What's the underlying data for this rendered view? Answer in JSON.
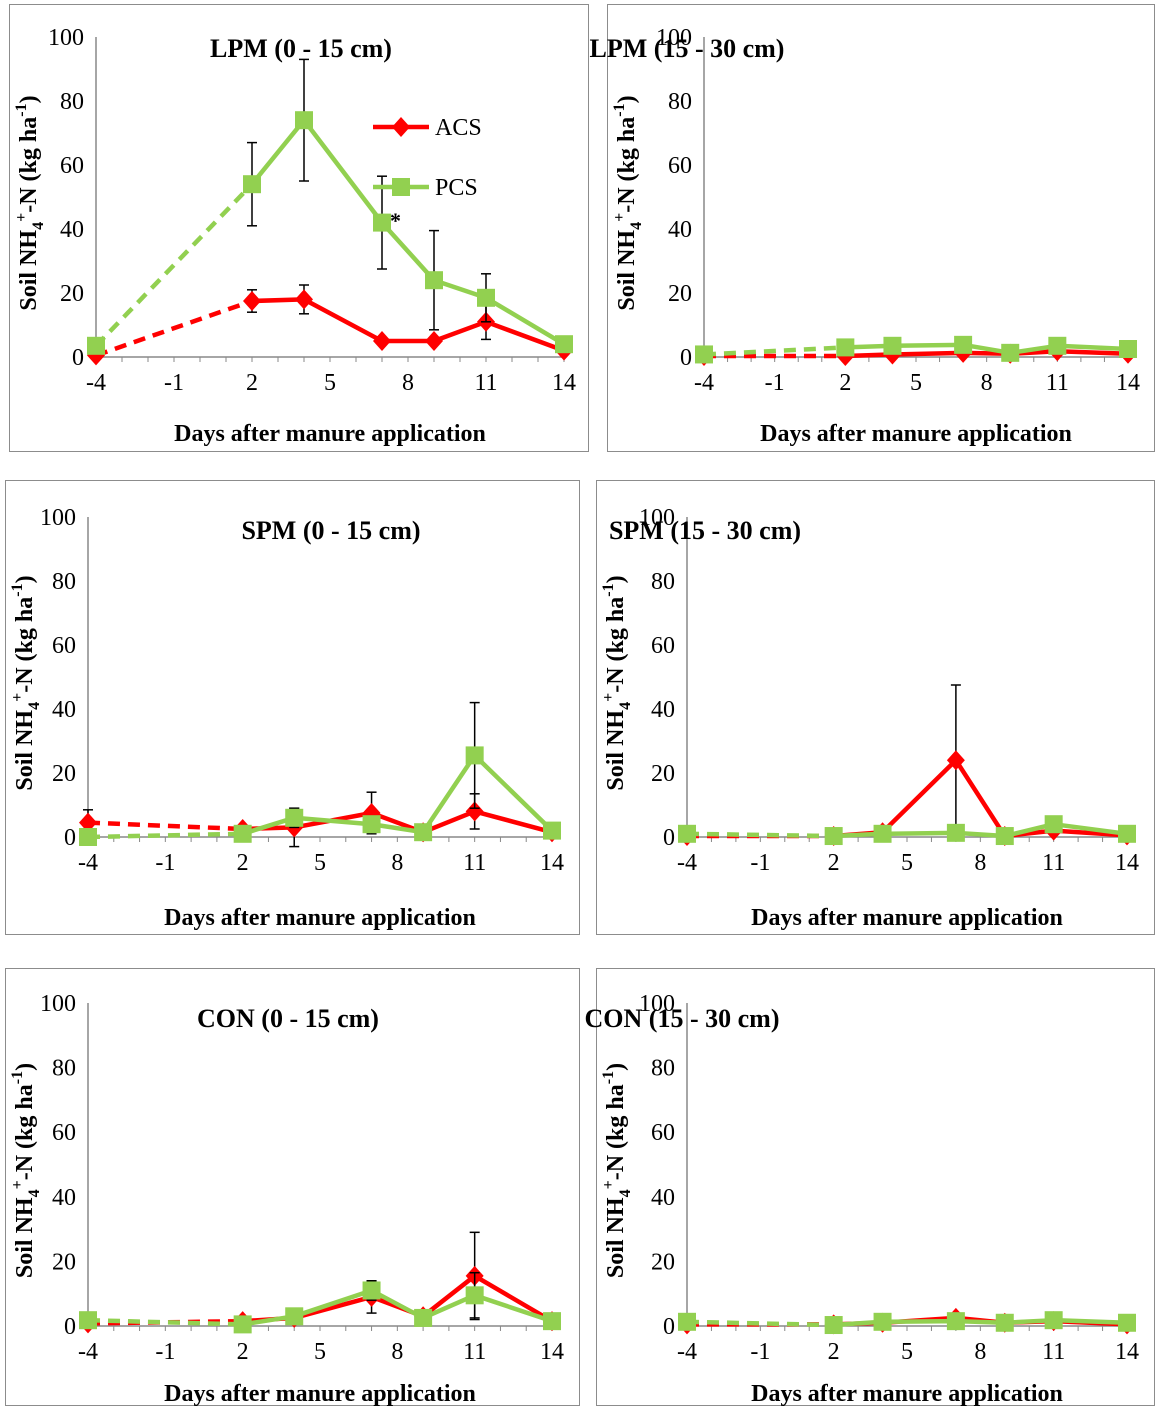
{
  "chart_data": [
    {
      "type": "line",
      "title": "LPM (0 - 15 cm)",
      "xlabel": "Days after manure application",
      "ylabel": {
        "pre": "Soil NH",
        "sub": "4",
        "sup": "+",
        "mid": "-N (kg ha",
        "sup2": "-1",
        "post": ")"
      },
      "xlim": [
        -4,
        14
      ],
      "xticks": [
        -4,
        -1,
        2,
        5,
        8,
        11,
        14
      ],
      "ylim": [
        0,
        100
      ],
      "yticks": [
        0,
        20,
        40,
        60,
        80,
        100
      ],
      "legend": false,
      "annotations": [
        {
          "text": "*",
          "x": 8,
          "y": 41
        }
      ],
      "series": [
        {
          "name": "ACS",
          "color": "#ff0000",
          "marker": "diamond",
          "x": [
            -4,
            2,
            4,
            7,
            9,
            11,
            14
          ],
          "y": [
            0.5,
            17.5,
            18,
            5,
            5,
            11,
            2
          ],
          "err": [
            0,
            3.5,
            4.5,
            0,
            0,
            5.5,
            0
          ]
        },
        {
          "name": "PCS",
          "color": "#92d050",
          "marker": "square",
          "x": [
            -4,
            2,
            4,
            7,
            9,
            11,
            14
          ],
          "y": [
            3.5,
            54,
            74,
            42,
            24,
            18.5,
            4
          ],
          "err": [
            0,
            13,
            19,
            14.5,
            15.5,
            7.5,
            0
          ]
        }
      ]
    },
    {
      "type": "line",
      "title": "LPM (15 - 30 cm)",
      "xlabel": "Days after manure application",
      "ylabel": {
        "pre": "Soil NH",
        "sub": "4",
        "sup": "+",
        "mid": "-N (kg ha",
        "sup2": "-1",
        "post": ")"
      },
      "xlim": [
        -4,
        14
      ],
      "xticks": [
        -4,
        -1,
        2,
        5,
        8,
        11,
        14
      ],
      "ylim": [
        0,
        100
      ],
      "yticks": [
        0,
        20,
        40,
        60,
        80,
        100
      ],
      "legend": true,
      "annotations": [],
      "series": [
        {
          "name": "ACS",
          "color": "#ff0000",
          "marker": "diamond",
          "x": [
            -4,
            2,
            4,
            7,
            9,
            11,
            14
          ],
          "y": [
            0.3,
            0.3,
            0.8,
            1.3,
            1.0,
            1.8,
            1.0
          ],
          "err": [
            0,
            0,
            0,
            0,
            0,
            0,
            0
          ]
        },
        {
          "name": "PCS",
          "color": "#92d050",
          "marker": "square",
          "x": [
            -4,
            2,
            4,
            7,
            9,
            11,
            14
          ],
          "y": [
            0.8,
            3.0,
            3.5,
            3.8,
            1.3,
            3.5,
            2.5
          ],
          "err": [
            0,
            0,
            0,
            0,
            0,
            0,
            0
          ]
        }
      ]
    },
    {
      "type": "line",
      "title": "SPM (0 - 15 cm)",
      "xlabel": "Days after manure application",
      "ylabel": {
        "pre": "Soil NH",
        "sub": "4",
        "sup": "+",
        "mid": "-N (kg ha",
        "sup2": "-1",
        "post": ")"
      },
      "xlim": [
        -4,
        14
      ],
      "xticks": [
        -4,
        -1,
        2,
        5,
        8,
        11,
        14
      ],
      "ylim": [
        0,
        100
      ],
      "yticks": [
        0,
        20,
        40,
        60,
        80,
        100
      ],
      "legend": false,
      "annotations": [],
      "series": [
        {
          "name": "ACS",
          "color": "#ff0000",
          "marker": "diamond",
          "x": [
            -4,
            2,
            4,
            7,
            9,
            11,
            14
          ],
          "y": [
            4.5,
            2.5,
            3.0,
            7.5,
            1.5,
            8.0,
            1.5
          ],
          "err": [
            4,
            0,
            6,
            6.5,
            0,
            5.5,
            0
          ]
        },
        {
          "name": "PCS",
          "color": "#92d050",
          "marker": "square",
          "x": [
            -4,
            2,
            4,
            7,
            9,
            11,
            14
          ],
          "y": [
            0,
            1.0,
            6.0,
            4.0,
            1.5,
            25.5,
            2.0
          ],
          "err": [
            0,
            0,
            3,
            0,
            0,
            16.5,
            0
          ]
        }
      ]
    },
    {
      "type": "line",
      "title": "SPM (15 - 30 cm)",
      "xlabel": "Days after manure application",
      "ylabel": {
        "pre": "Soil NH",
        "sub": "4",
        "sup": "+",
        "mid": "-N (kg ha",
        "sup2": "-1",
        "post": ")"
      },
      "xlim": [
        -4,
        14
      ],
      "xticks": [
        -4,
        -1,
        2,
        5,
        8,
        11,
        14
      ],
      "ylim": [
        0,
        100
      ],
      "yticks": [
        0,
        20,
        40,
        60,
        80,
        100
      ],
      "legend": false,
      "annotations": [],
      "series": [
        {
          "name": "ACS",
          "color": "#ff0000",
          "marker": "diamond",
          "x": [
            -4,
            2,
            4,
            7,
            9,
            11,
            14
          ],
          "y": [
            0.3,
            0.3,
            1.5,
            24.0,
            0.3,
            2.0,
            0.5
          ],
          "err": [
            0,
            0,
            0,
            23.5,
            0,
            0,
            0
          ]
        },
        {
          "name": "PCS",
          "color": "#92d050",
          "marker": "square",
          "x": [
            -4,
            2,
            4,
            7,
            9,
            11,
            14
          ],
          "y": [
            1.0,
            0.3,
            1.0,
            1.3,
            0.3,
            4.0,
            1.0
          ],
          "err": [
            0,
            0,
            0,
            0,
            0,
            0,
            0
          ]
        }
      ]
    },
    {
      "type": "line",
      "title": "CON (0 - 15 cm)",
      "xlabel": "Days after manure application",
      "ylabel": {
        "pre": "Soil NH",
        "sub": "4",
        "sup": "+",
        "mid": "-N (kg ha",
        "sup2": "-1",
        "post": ")"
      },
      "xlim": [
        -4,
        14
      ],
      "xticks": [
        -4,
        -1,
        2,
        5,
        8,
        11,
        14
      ],
      "ylim": [
        0,
        100
      ],
      "yticks": [
        0,
        20,
        40,
        60,
        80,
        100
      ],
      "legend": false,
      "annotations": [],
      "series": [
        {
          "name": "ACS",
          "color": "#ff0000",
          "marker": "diamond",
          "x": [
            -4,
            2,
            4,
            7,
            9,
            11,
            14
          ],
          "y": [
            0.8,
            1.5,
            2.5,
            9.0,
            3.0,
            15.5,
            1.5
          ],
          "err": [
            0,
            0,
            0,
            5,
            0,
            13.5,
            0
          ]
        },
        {
          "name": "PCS",
          "color": "#92d050",
          "marker": "square",
          "x": [
            -4,
            2,
            4,
            7,
            9,
            11,
            14
          ],
          "y": [
            1.8,
            0.5,
            3.0,
            11.0,
            2.5,
            9.5,
            1.5
          ],
          "err": [
            0,
            0,
            0,
            3,
            0,
            7,
            0
          ]
        }
      ]
    },
    {
      "type": "line",
      "title": "CON (15 - 30 cm)",
      "xlabel": "Days after manure application",
      "ylabel": {
        "pre": "Soil NH",
        "sub": "4",
        "sup": "+",
        "mid": "-N (kg ha",
        "sup2": "-1",
        "post": ")"
      },
      "xlim": [
        -4,
        14
      ],
      "xticks": [
        -4,
        -1,
        2,
        5,
        8,
        11,
        14
      ],
      "ylim": [
        0,
        100
      ],
      "yticks": [
        0,
        20,
        40,
        60,
        80,
        100
      ],
      "legend": false,
      "annotations": [],
      "series": [
        {
          "name": "ACS",
          "color": "#ff0000",
          "marker": "diamond",
          "x": [
            -4,
            2,
            4,
            7,
            9,
            11,
            14
          ],
          "y": [
            0.5,
            0.5,
            1.0,
            2.5,
            1.0,
            1.5,
            0.5
          ],
          "err": [
            0,
            0,
            0,
            0,
            0,
            0,
            0
          ]
        },
        {
          "name": "PCS",
          "color": "#92d050",
          "marker": "square",
          "x": [
            -4,
            2,
            4,
            7,
            9,
            11,
            14
          ],
          "y": [
            1.3,
            0.3,
            1.3,
            1.5,
            1.0,
            1.8,
            1.0
          ],
          "err": [
            0,
            0,
            0,
            0,
            0,
            0,
            0
          ]
        }
      ]
    }
  ]
}
